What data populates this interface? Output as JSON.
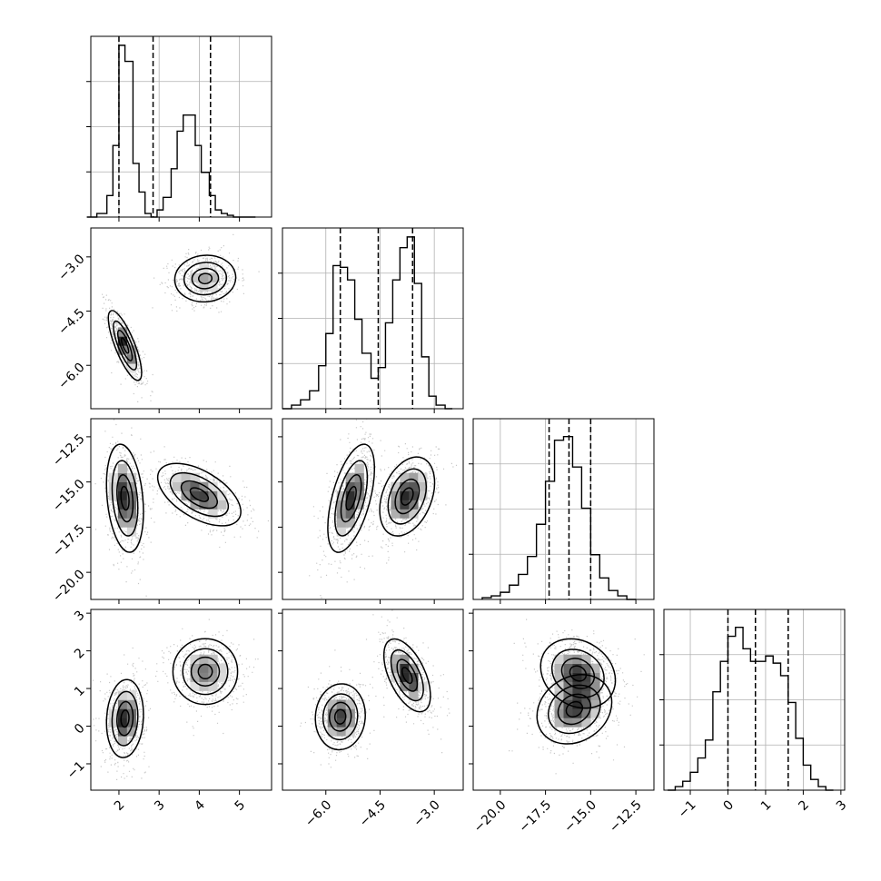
{
  "chart_data": {
    "type": "corner",
    "parameters": 4,
    "axis_ranges": [
      [
        1.3,
        5.8
      ],
      [
        -7.2,
        -2.2
      ],
      [
        -21.5,
        -11.5
      ],
      [
        -1.7,
        3.1
      ]
    ],
    "tick_values": [
      [
        2,
        3,
        4,
        5
      ],
      [
        -6.0,
        -4.5,
        -3.0
      ],
      [
        -20.0,
        -17.5,
        -15.0,
        -12.5
      ],
      [
        -1,
        0,
        1,
        2,
        3
      ]
    ],
    "tick_labels": [
      [
        "2",
        "3",
        "4",
        "5"
      ],
      [
        "−6.0",
        "−4.5",
        "−3.0"
      ],
      [
        "−20.0",
        "−17.5",
        "−15.0",
        "−12.5"
      ],
      [
        "−1",
        "0",
        "1",
        "2",
        "3"
      ]
    ],
    "quantiles": [
      [
        2.0,
        2.85,
        4.28
      ],
      [
        -5.6,
        -4.55,
        -3.6
      ],
      [
        -17.3,
        -16.2,
        -15.0
      ],
      [
        0.0,
        0.73,
        1.6
      ]
    ],
    "grid": true,
    "histograms": [
      {
        "param": 0,
        "bin_edges": [
          1.2,
          1.45,
          1.7,
          1.85,
          2.0,
          2.15,
          2.35,
          2.5,
          2.65,
          2.8,
          2.95,
          3.1,
          3.3,
          3.45,
          3.6,
          3.75,
          3.9,
          4.05,
          4.25,
          4.4,
          4.55,
          4.7,
          4.85,
          5.05,
          5.2,
          5.4
        ],
        "counts": [
          0.0,
          0.02,
          0.12,
          0.4,
          0.96,
          0.87,
          0.3,
          0.14,
          0.02,
          0.0,
          0.04,
          0.11,
          0.27,
          0.48,
          0.57,
          0.57,
          0.4,
          0.25,
          0.12,
          0.04,
          0.02,
          0.01,
          0.0,
          0.0,
          0.0
        ]
      },
      {
        "param": 1,
        "bin_edges": [
          -7.2,
          -6.95,
          -6.7,
          -6.45,
          -6.2,
          -6.0,
          -5.8,
          -5.6,
          -5.4,
          -5.2,
          -5.0,
          -4.75,
          -4.55,
          -4.35,
          -4.15,
          -3.95,
          -3.75,
          -3.55,
          -3.35,
          -3.15,
          -2.95,
          -2.7,
          -2.5
        ],
        "counts": [
          0.0,
          0.02,
          0.05,
          0.1,
          0.24,
          0.42,
          0.8,
          0.79,
          0.72,
          0.5,
          0.31,
          0.17,
          0.23,
          0.48,
          0.72,
          0.9,
          0.96,
          0.7,
          0.29,
          0.07,
          0.02,
          0.0
        ]
      },
      {
        "param": 2,
        "bin_edges": [
          -21.0,
          -20.5,
          -20.0,
          -19.5,
          -19.0,
          -18.5,
          -18.0,
          -17.5,
          -17.0,
          -16.5,
          -16.0,
          -15.5,
          -15.0,
          -14.5,
          -14.0,
          -13.5,
          -13.0,
          -12.5
        ],
        "counts": [
          0.01,
          0.02,
          0.04,
          0.08,
          0.14,
          0.24,
          0.42,
          0.66,
          0.89,
          0.91,
          0.74,
          0.51,
          0.25,
          0.12,
          0.05,
          0.02,
          0.0
        ]
      },
      {
        "param": 3,
        "bin_edges": [
          -1.6,
          -1.4,
          -1.2,
          -1.0,
          -0.8,
          -0.6,
          -0.4,
          -0.2,
          0.0,
          0.2,
          0.4,
          0.6,
          0.8,
          1.0,
          1.2,
          1.4,
          1.6,
          1.8,
          2.0,
          2.2,
          2.4,
          2.6,
          2.8
        ],
        "counts": [
          0.0,
          0.02,
          0.05,
          0.1,
          0.18,
          0.28,
          0.55,
          0.72,
          0.86,
          0.91,
          0.79,
          0.72,
          0.72,
          0.75,
          0.71,
          0.64,
          0.49,
          0.29,
          0.14,
          0.06,
          0.02,
          0.0
        ]
      }
    ],
    "joint_modes": [
      {
        "params": [
          0,
          1
        ],
        "components": [
          {
            "center": [
              2.15,
              -5.45
            ],
            "sd": [
              0.18,
              0.42
            ],
            "rho": -0.78,
            "weight": 0.5
          },
          {
            "center": [
              4.15,
              -3.6
            ],
            "sd": [
              0.33,
              0.28
            ],
            "rho": 0.05,
            "weight": 0.5
          }
        ]
      },
      {
        "params": [
          0,
          2
        ],
        "components": [
          {
            "center": [
              2.15,
              -15.9
            ],
            "sd": [
              0.2,
              1.3
            ],
            "rho": -0.25,
            "weight": 0.5
          },
          {
            "center": [
              4.0,
              -15.7
            ],
            "sd": [
              0.45,
              0.75
            ],
            "rho": -0.55,
            "weight": 0.5
          }
        ]
      },
      {
        "params": [
          1,
          2
        ],
        "components": [
          {
            "center": [
              -5.3,
              -15.9
            ],
            "sd": [
              0.28,
              1.3
            ],
            "rho": 0.55,
            "weight": 0.5
          },
          {
            "center": [
              -3.75,
              -15.8
            ],
            "sd": [
              0.33,
              0.95
            ],
            "rho": 0.35,
            "weight": 0.5
          }
        ]
      },
      {
        "params": [
          0,
          3
        ],
        "components": [
          {
            "center": [
              2.15,
              0.2
            ],
            "sd": [
              0.2,
              0.45
            ],
            "rho": 0.1,
            "weight": 0.5
          },
          {
            "center": [
              4.15,
              1.45
            ],
            "sd": [
              0.35,
              0.38
            ],
            "rho": 0.0,
            "weight": 0.5
          }
        ]
      },
      {
        "params": [
          1,
          3
        ],
        "components": [
          {
            "center": [
              -5.6,
              0.25
            ],
            "sd": [
              0.3,
              0.38
            ],
            "rho": 0.05,
            "weight": 0.5
          },
          {
            "center": [
              -3.75,
              1.35
            ],
            "sd": [
              0.28,
              0.42
            ],
            "rho": -0.55,
            "weight": 0.5
          }
        ]
      },
      {
        "params": [
          2,
          3
        ],
        "components": [
          {
            "center": [
              -15.9,
              0.45
            ],
            "sd": [
              0.9,
              0.4
            ],
            "rho": 0.2,
            "weight": 0.5
          },
          {
            "center": [
              -15.7,
              1.4
            ],
            "sd": [
              0.9,
              0.4
            ],
            "rho": -0.2,
            "weight": 0.5
          }
        ]
      }
    ],
    "colors": {
      "line": "#000000",
      "grid": "#b0b0b0",
      "scatter": "#000000"
    }
  }
}
